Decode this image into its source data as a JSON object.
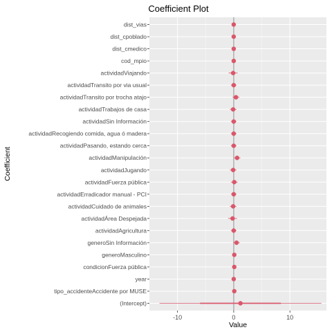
{
  "chart_data": {
    "type": "scatter",
    "title": "Coefficient Plot",
    "xlabel": "Value",
    "ylabel": "Coefficient",
    "xlim": [
      -15,
      16.5
    ],
    "x_ticks": [
      -10,
      0,
      10
    ],
    "x_tick_labels": [
      "-10",
      "0",
      "10"
    ],
    "grid": true,
    "legend": "none",
    "colors": {
      "panel_bg": "#ebebeb",
      "grid_major": "#ffffff",
      "zero_line": "#a6a6a6",
      "point": "#d9576b"
    },
    "coefficients": [
      {
        "name": "dist_vias",
        "value": 0.0,
        "inner": [
          -0.1,
          0.1
        ],
        "outer": [
          -0.2,
          0.2
        ]
      },
      {
        "name": "dist_cpoblado",
        "value": 0.0,
        "inner": [
          -0.1,
          0.1
        ],
        "outer": [
          -0.2,
          0.2
        ]
      },
      {
        "name": "dist_cmedico",
        "value": 0.0,
        "inner": [
          -0.1,
          0.1
        ],
        "outer": [
          -0.2,
          0.2
        ]
      },
      {
        "name": "cod_mpio",
        "value": 0.0,
        "inner": [
          -0.1,
          0.1
        ],
        "outer": [
          -0.2,
          0.2
        ]
      },
      {
        "name": "actividadViajando",
        "value": -0.1,
        "inner": [
          -0.5,
          0.3
        ],
        "outer": [
          -0.9,
          0.7
        ]
      },
      {
        "name": "actividadTransito por via usual",
        "value": 0.0,
        "inner": [
          -0.3,
          0.3
        ],
        "outer": [
          -0.5,
          0.5
        ]
      },
      {
        "name": "actividadTransito por trocha atajo",
        "value": 0.4,
        "inner": [
          0.1,
          0.7
        ],
        "outer": [
          -0.2,
          1.0
        ]
      },
      {
        "name": "actividadTrabajos de casa",
        "value": -0.1,
        "inner": [
          -0.4,
          0.2
        ],
        "outer": [
          -0.7,
          0.5
        ]
      },
      {
        "name": "actividadSin Información",
        "value": 0.0,
        "inner": [
          -0.3,
          0.3
        ],
        "outer": [
          -0.5,
          0.5
        ]
      },
      {
        "name": "actividadRecogiendo comida, agua ó  madera",
        "value": 0.0,
        "inner": [
          -0.3,
          0.3
        ],
        "outer": [
          -0.5,
          0.5
        ]
      },
      {
        "name": "actividadPasando, estando cerca",
        "value": 0.0,
        "inner": [
          -0.3,
          0.3
        ],
        "outer": [
          -0.5,
          0.5
        ]
      },
      {
        "name": "actividadManipulación",
        "value": 0.6,
        "inner": [
          0.3,
          0.9
        ],
        "outer": [
          0.0,
          1.2
        ]
      },
      {
        "name": "actividadJugando",
        "value": -0.1,
        "inner": [
          -0.4,
          0.2
        ],
        "outer": [
          -0.7,
          0.5
        ]
      },
      {
        "name": "actividadFuerza pública",
        "value": 0.1,
        "inner": [
          -0.2,
          0.4
        ],
        "outer": [
          -0.5,
          0.7
        ]
      },
      {
        "name": "actividadErradicador manual - PCI",
        "value": 0.0,
        "inner": [
          -0.3,
          0.3
        ],
        "outer": [
          -0.5,
          0.5
        ]
      },
      {
        "name": "actividadCuidado de animales",
        "value": -0.1,
        "inner": [
          -0.4,
          0.2
        ],
        "outer": [
          -0.7,
          0.5
        ]
      },
      {
        "name": "actividadÁrea Despejada",
        "value": -0.2,
        "inner": [
          -0.6,
          0.2
        ],
        "outer": [
          -1.0,
          0.6
        ]
      },
      {
        "name": "actividadAgricultura",
        "value": 0.0,
        "inner": [
          -0.3,
          0.3
        ],
        "outer": [
          -0.5,
          0.5
        ]
      },
      {
        "name": "generoSin Información",
        "value": 0.5,
        "inner": [
          0.2,
          0.8
        ],
        "outer": [
          -0.1,
          1.1
        ]
      },
      {
        "name": "generoMasculino",
        "value": 0.1,
        "inner": [
          -0.1,
          0.3
        ],
        "outer": [
          -0.3,
          0.5
        ]
      },
      {
        "name": "condicionFuerza pública",
        "value": 0.1,
        "inner": [
          -0.1,
          0.3
        ],
        "outer": [
          -0.3,
          0.5
        ]
      },
      {
        "name": "year",
        "value": 0.0,
        "inner": [
          -0.1,
          0.1
        ],
        "outer": [
          -0.2,
          0.2
        ]
      },
      {
        "name": "tipo_accidenteAccidente por MUSE",
        "value": 0.1,
        "inner": [
          -0.1,
          0.3
        ],
        "outer": [
          -0.3,
          0.5
        ]
      },
      {
        "name": "(Intercept)",
        "value": 1.2,
        "inner": [
          -6.0,
          8.4
        ],
        "outer": [
          -13.2,
          15.6
        ]
      }
    ]
  }
}
